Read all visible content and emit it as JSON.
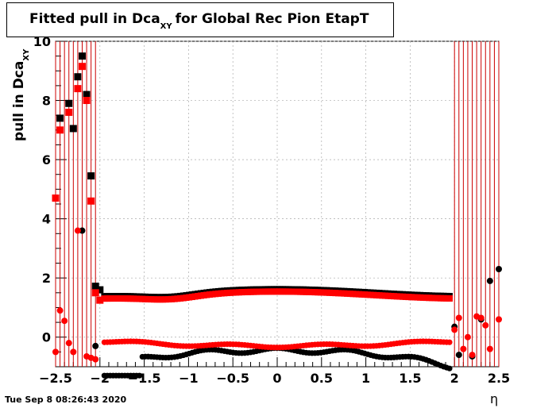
{
  "chart_data": {
    "type": "scatter",
    "title_main": "Fitted pull in Dca",
    "title_sub": "XY",
    "title_rest": "for Global Rec Pion EtapT",
    "ylabel_main": "pull in Dca",
    "ylabel_sub": "XY",
    "xlabel": "η",
    "xlim": [
      -2.5,
      2.5
    ],
    "ylim": [
      -1,
      10
    ],
    "xticks": [
      "−2.5",
      "−2",
      "−1.5",
      "−1",
      "−0.5",
      "0",
      "0.5",
      "1",
      "1.5",
      "2",
      "2.5"
    ],
    "yticks": [
      "0",
      "2",
      "4",
      "6",
      "8",
      "10"
    ],
    "grid": true,
    "series": [
      {
        "marker": "square",
        "color": "#000000",
        "x": [
          -2.45,
          -2.35,
          -2.3,
          -2.25,
          -2.2,
          -2.15,
          -2.1,
          -2.05,
          -2.0
        ],
        "y": [
          7.4,
          7.9,
          7.05,
          8.8,
          9.5,
          8.2,
          5.45,
          1.72,
          1.6
        ]
      },
      {
        "marker": "square",
        "color": "#ff0000",
        "x": [
          -2.5,
          -2.45,
          -2.35,
          -2.25,
          -2.2,
          -2.15,
          -2.1,
          -2.05,
          -2.0
        ],
        "y": [
          4.7,
          7.0,
          7.6,
          8.4,
          9.15,
          8.0,
          4.6,
          1.5,
          1.25
        ]
      },
      {
        "marker": "circle",
        "color": "#000000",
        "x": [
          -2.2,
          -2.05,
          2.0,
          2.05,
          2.2,
          2.3,
          2.4,
          2.5
        ],
        "y": [
          3.6,
          -0.3,
          0.35,
          -0.6,
          -0.65,
          0.6,
          1.9,
          2.3
        ]
      },
      {
        "marker": "circle",
        "color": "#ff0000",
        "x": [
          -2.5,
          -2.45,
          -2.4,
          -2.35,
          -2.3,
          -2.25,
          -2.15,
          -2.1,
          -2.05,
          2.0,
          2.05,
          2.1,
          2.15,
          2.2,
          2.25,
          2.3,
          2.35,
          2.4,
          2.5
        ],
        "y": [
          -0.5,
          0.9,
          0.55,
          -0.2,
          -0.5,
          3.6,
          -0.65,
          -0.7,
          -0.75,
          0.25,
          0.65,
          -0.4,
          0.0,
          -0.6,
          0.7,
          0.65,
          0.4,
          -0.4,
          0.6
        ]
      }
    ]
  },
  "footer": {
    "timestamp": "Tue Sep  8 08:26:43 2020"
  }
}
